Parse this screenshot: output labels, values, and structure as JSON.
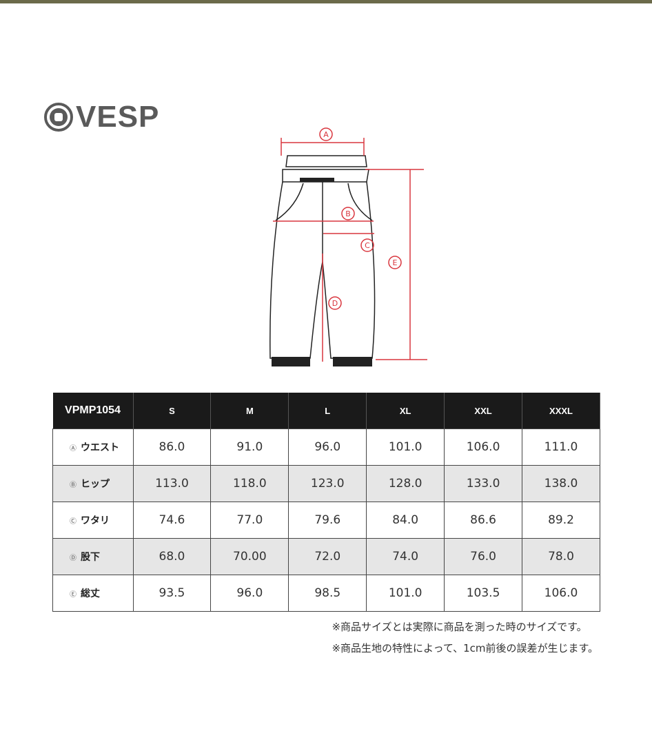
{
  "brand": {
    "name": "VESP"
  },
  "diagram": {
    "labels": [
      "A",
      "B",
      "C",
      "D",
      "E"
    ],
    "accent_color": "#d9363e"
  },
  "table": {
    "model": "VPMP1054",
    "sizes": [
      "S",
      "M",
      "L",
      "XL",
      "XXL",
      "XXXL"
    ],
    "rows": [
      {
        "marker": "Ⓐ",
        "label": "ウエスト",
        "values": [
          "86.0",
          "91.0",
          "96.0",
          "101.0",
          "106.0",
          "111.0"
        ]
      },
      {
        "marker": "Ⓑ",
        "label": "ヒップ",
        "values": [
          "113.0",
          "118.0",
          "123.0",
          "128.0",
          "133.0",
          "138.0"
        ]
      },
      {
        "marker": "Ⓒ",
        "label": "ワタリ",
        "values": [
          "74.6",
          "77.0",
          "79.6",
          "84.0",
          "86.6",
          "89.2"
        ]
      },
      {
        "marker": "Ⓓ",
        "label": "股下",
        "values": [
          "68.0",
          "70.00",
          "72.0",
          "74.0",
          "76.0",
          "78.0"
        ]
      },
      {
        "marker": "Ⓔ",
        "label": "総丈",
        "values": [
          "93.5",
          "96.0",
          "98.5",
          "101.0",
          "103.5",
          "106.0"
        ]
      }
    ]
  },
  "notes": [
    "※商品サイズとは実際に商品を測った時のサイズです。",
    "※商品生地の特性によって、1cm前後の誤差が生じます。"
  ]
}
